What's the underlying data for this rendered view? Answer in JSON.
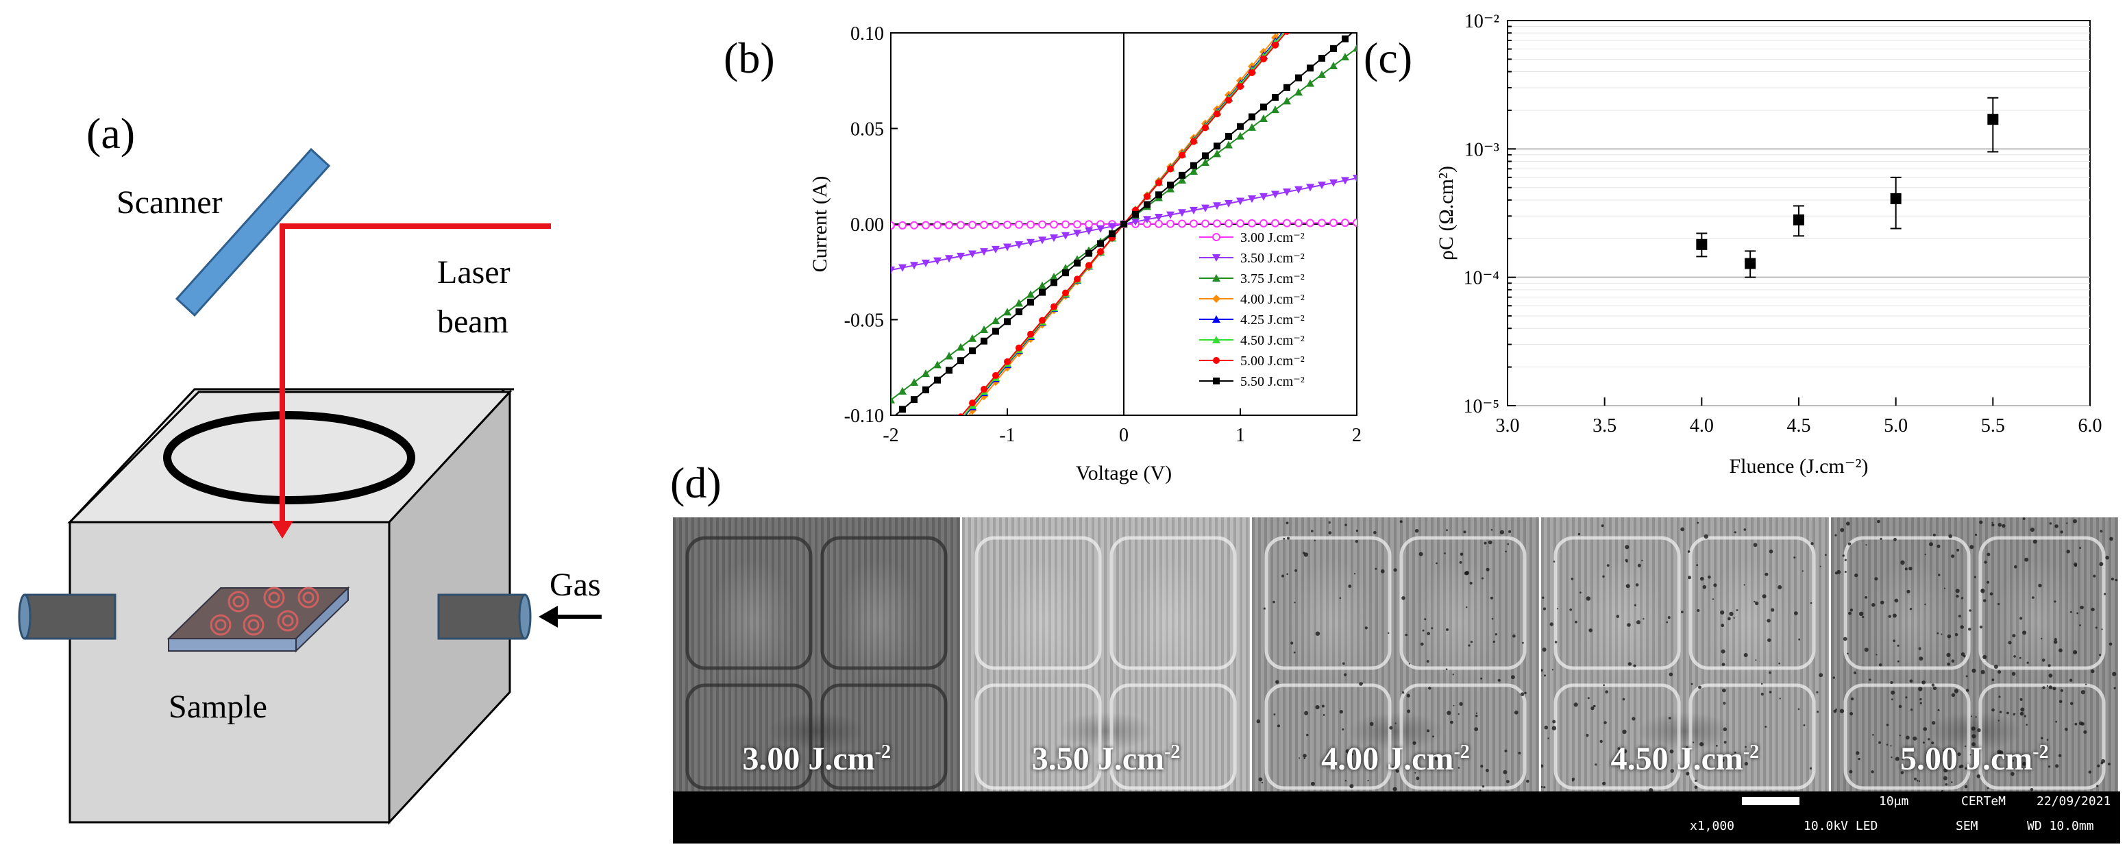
{
  "panels": {
    "a": {
      "letter": "(a)",
      "labels": {
        "scanner": "Scanner",
        "laser_line1": "Laser",
        "laser_line2": "beam",
        "gas": "Gas",
        "sample": "Sample"
      },
      "colors": {
        "laser": "#e8131b",
        "scanner": "#5b9bd5",
        "box_front": "#d4d4d4",
        "box_top": "#e4e4e4",
        "box_side": "#b8b8b8"
      }
    },
    "b": {
      "letter": "(b)",
      "chart_data": {
        "type": "line",
        "xlabel": "Voltage (V)",
        "ylabel": "Current (A)",
        "xlim": [
          -2,
          2
        ],
        "ylim": [
          -0.1,
          0.1
        ],
        "xticks": [
          "-2",
          "-1",
          "0",
          "1",
          "2"
        ],
        "yticks": [
          "-0.10",
          "-0.05",
          "0.00",
          "0.05",
          "0.10"
        ],
        "legend_position": "bottom-right",
        "series": [
          {
            "name": "3.00 J.cm⁻²",
            "slope": 0.00035,
            "color": "#ff33ff",
            "marker": "circle-open"
          },
          {
            "name": "3.50 J.cm⁻²",
            "slope": 0.012,
            "color": "#9933ff",
            "marker": "triangle-down"
          },
          {
            "name": "3.75 J.cm⁻²",
            "slope": 0.046,
            "color": "#228b22",
            "marker": "triangle-up"
          },
          {
            "name": "4.00 J.cm⁻²",
            "slope": 0.075,
            "color": "#ff8c00",
            "marker": "diamond"
          },
          {
            "name": "4.25 J.cm⁻²",
            "slope": 0.0735,
            "color": "#0000ff",
            "marker": "triangle-up"
          },
          {
            "name": "4.50 J.cm⁻²",
            "slope": 0.073,
            "color": "#33dd33",
            "marker": "triangle-up"
          },
          {
            "name": "5.00 J.cm⁻²",
            "slope": 0.072,
            "color": "#ff0000",
            "marker": "circle"
          },
          {
            "name": "5.50 J.cm⁻²",
            "slope": 0.051,
            "color": "#000000",
            "marker": "square"
          }
        ]
      }
    },
    "c": {
      "letter": "(c)",
      "chart_data": {
        "type": "scatter",
        "xlabel": "Fluence (J.cm⁻²)",
        "ylabel": "ρC (Ω.cm²)",
        "xlim": [
          3.0,
          6.0
        ],
        "ylim": [
          1e-05,
          0.01
        ],
        "log_y": true,
        "xticks": [
          "3.0",
          "3.5",
          "4.0",
          "4.5",
          "5.0",
          "5.5",
          "6.0"
        ],
        "yticks": [
          "10⁻⁵",
          "10⁻⁴",
          "10⁻³",
          "10⁻²"
        ],
        "points": [
          {
            "x": 4.0,
            "y": 0.00018,
            "err_low": 0.000145,
            "err_high": 0.00022
          },
          {
            "x": 4.25,
            "y": 0.000128,
            "err_low": 0.0001,
            "err_high": 0.00016
          },
          {
            "x": 4.5,
            "y": 0.00028,
            "err_low": 0.00021,
            "err_high": 0.00036
          },
          {
            "x": 5.0,
            "y": 0.00041,
            "err_low": 0.00024,
            "err_high": 0.0006
          },
          {
            "x": 5.5,
            "y": 0.0017,
            "err_low": 0.00095,
            "err_high": 0.0025
          }
        ]
      }
    },
    "d": {
      "letter": "(d)",
      "tiles": [
        {
          "label": "3.00 J.cm",
          "sup": "-2",
          "base": "#6e6e6e"
        },
        {
          "label": "3.50 J.cm",
          "sup": "-2",
          "base": "#b8b8b8"
        },
        {
          "label": "4.00 J.cm",
          "sup": "-2",
          "base": "#9a9a9a"
        },
        {
          "label": "4.50 J.cm",
          "sup": "-2",
          "base": "#a4a4a4"
        },
        {
          "label": "5.00 J.cm",
          "sup": "-2",
          "base": "#8e8e8e"
        }
      ],
      "meta": {
        "scale": "10μm",
        "lab": "CERTeM",
        "date": "22/09/2021",
        "mag": "x1,000",
        "kv": "10.0kV LED",
        "mode": "SEM",
        "wd": "WD 10.0mm"
      }
    }
  }
}
